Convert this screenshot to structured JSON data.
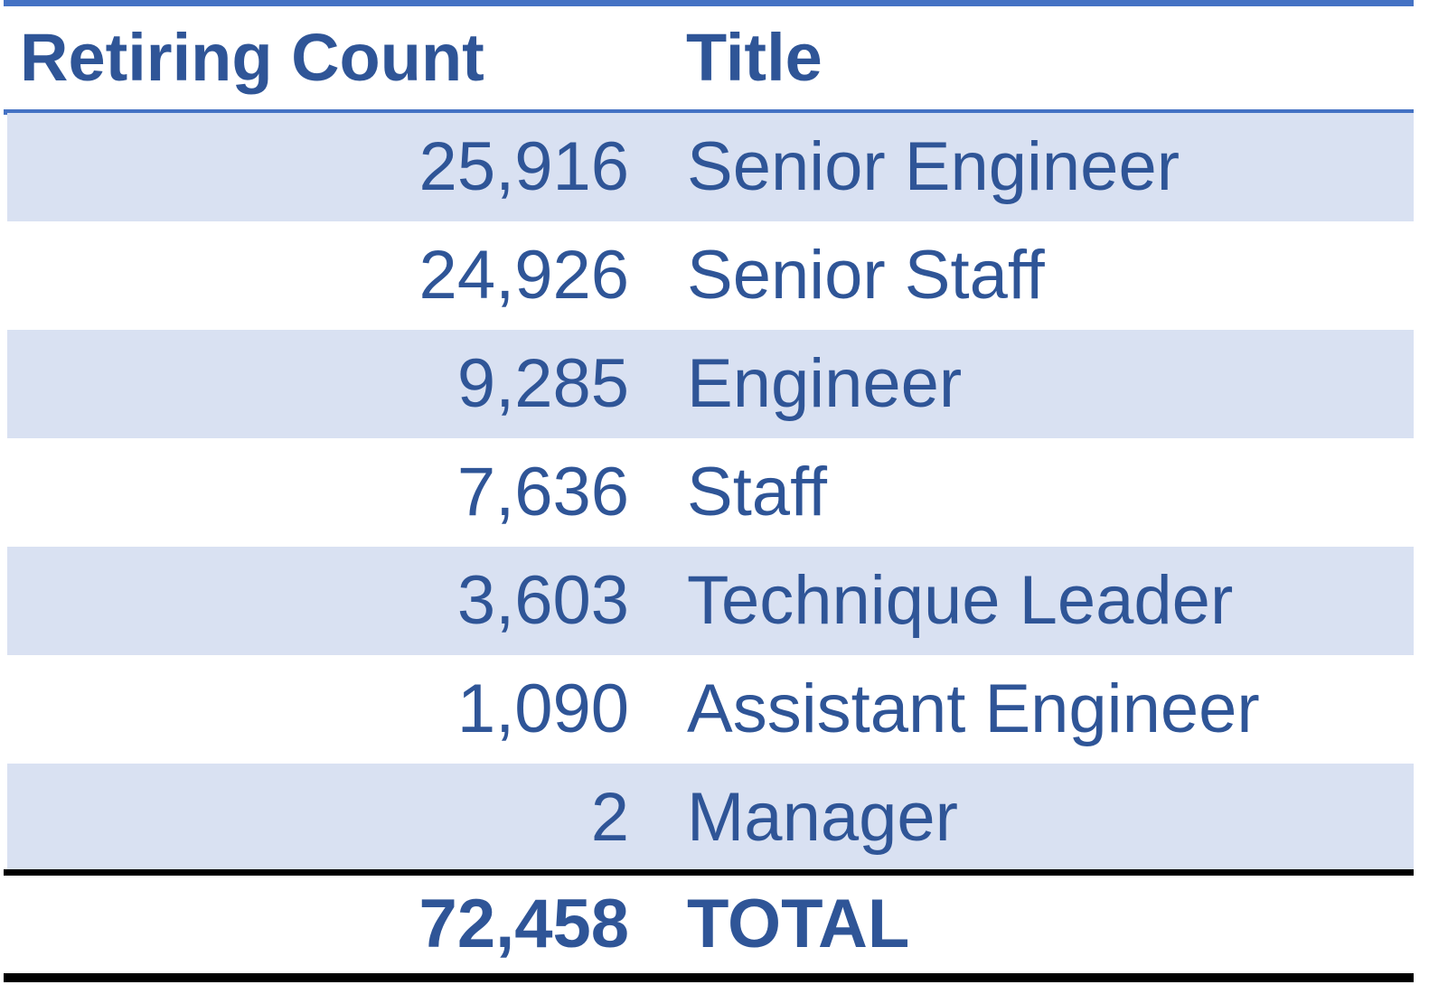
{
  "headers": {
    "count": "Retiring Count",
    "title": "Title"
  },
  "rows": [
    {
      "count": "25,916",
      "title": "Senior Engineer"
    },
    {
      "count": "24,926",
      "title": "Senior Staff"
    },
    {
      "count": "9,285",
      "title": "Engineer"
    },
    {
      "count": "7,636",
      "title": "Staff"
    },
    {
      "count": "3,603",
      "title": "Technique Leader"
    },
    {
      "count": "1,090",
      "title": "Assistant Engineer"
    },
    {
      "count": "2",
      "title": "Manager"
    }
  ],
  "total": {
    "count": "72,458",
    "title": "TOTAL"
  },
  "colors": {
    "text": "#2f5597",
    "accent_rule": "#4472c4",
    "band": "#d9e1f2",
    "total_rule": "#000000"
  }
}
